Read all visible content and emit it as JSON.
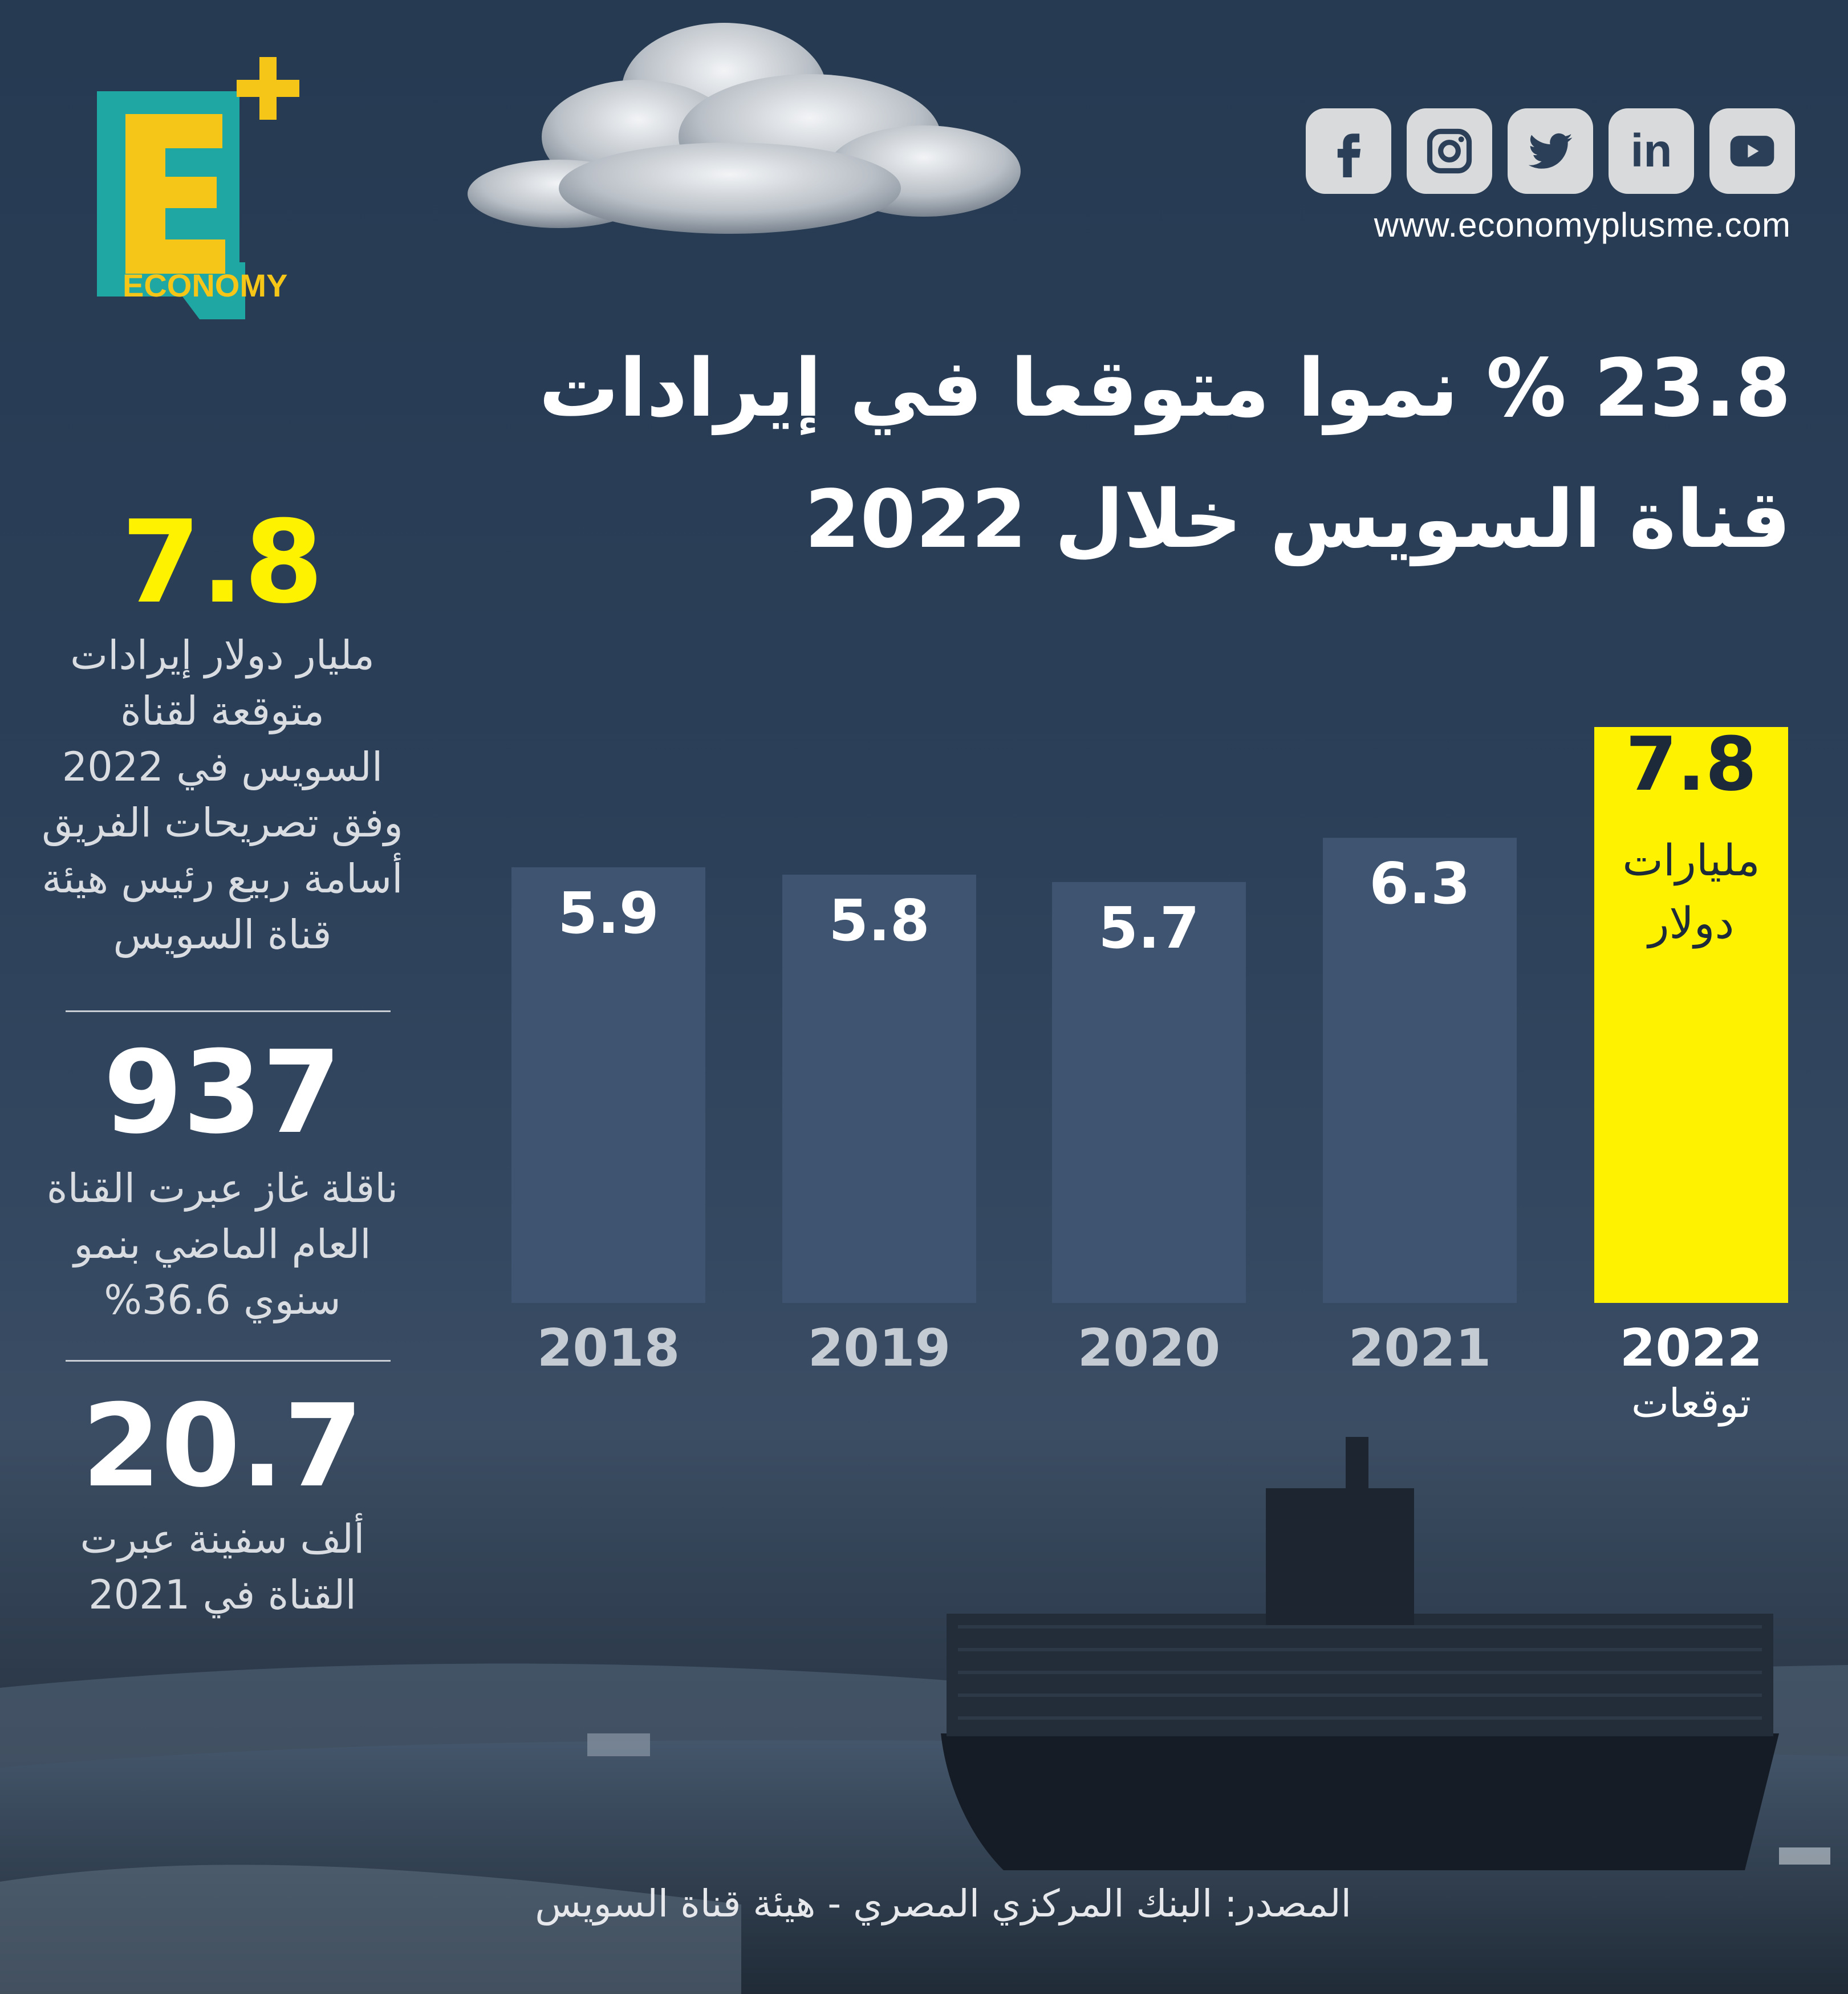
{
  "brand": {
    "logo_letter": "E",
    "logo_word": "ECONOMY",
    "website": "www.economyplusme.com",
    "colors": {
      "teal": "#1fa7a3",
      "yellow": "#f5c518",
      "navy_bg": "#2b3f58",
      "highlight": "#fff200"
    }
  },
  "social": [
    {
      "name": "facebook",
      "icon": "facebook-icon"
    },
    {
      "name": "instagram",
      "icon": "instagram-icon"
    },
    {
      "name": "twitter",
      "icon": "twitter-icon"
    },
    {
      "name": "linkedin",
      "icon": "linkedin-icon",
      "label": "in"
    },
    {
      "name": "youtube",
      "icon": "youtube-icon"
    }
  ],
  "title": {
    "line1": "23.8 % نموا متوقعا في إيرادات",
    "line2": "قناة السويس خلال 2022"
  },
  "stats": [
    {
      "value": "7.8",
      "text": "مليار دولار إيرادات\nمتوقعة لقناة\nالسويس في 2022\nوفق تصريحات الفريق\nأسامة ربيع رئيس هيئة\nقناة السويس"
    },
    {
      "value": "937",
      "text": "ناقلة غاز عبرت القناة\nالعام الماضي بنمو\nسنوي 36.6%"
    },
    {
      "value": "20.7",
      "text": "ألف سفينة عبرت\nالقناة في 2021"
    }
  ],
  "chart_data": {
    "type": "bar",
    "categories": [
      "2018",
      "2019",
      "2020",
      "2021",
      "2022"
    ],
    "values": [
      5.9,
      5.8,
      5.7,
      6.3,
      7.8
    ],
    "value_labels": [
      "5.9",
      "5.8",
      "5.7",
      "6.3",
      "7.8"
    ],
    "highlight_index": 4,
    "highlight_unit_line1": "مليارات",
    "highlight_unit_line2": "دولار",
    "highlight_category_note": "توقعات",
    "bar_color": "#3e5470",
    "highlight_color": "#fff200",
    "title": "",
    "xlabel": "",
    "ylabel": ""
  },
  "source": "المصدر: البنك المركزي المصري - هيئة قناة السويس"
}
